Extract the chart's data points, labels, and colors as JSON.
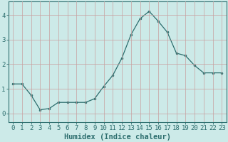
{
  "x": [
    0,
    1,
    2,
    3,
    4,
    5,
    6,
    7,
    8,
    9,
    10,
    11,
    12,
    13,
    14,
    15,
    16,
    17,
    18,
    19,
    20,
    21,
    22,
    23
  ],
  "y": [
    1.2,
    1.2,
    0.75,
    0.15,
    0.2,
    0.45,
    0.45,
    0.45,
    0.45,
    0.6,
    1.1,
    1.55,
    2.25,
    3.2,
    3.85,
    4.15,
    3.75,
    3.3,
    2.45,
    2.35,
    1.95,
    1.65,
    1.65,
    1.65
  ],
  "line_color": "#2d6e6e",
  "marker": "o",
  "marker_size": 2.0,
  "bg_color": "#cceae8",
  "grid_color": "#c8a0a0",
  "xlabel": "Humidex (Indice chaleur)",
  "xlabel_fontsize": 7.5,
  "yticks": [
    0,
    1,
    2,
    3,
    4
  ],
  "ylim": [
    -0.35,
    4.55
  ],
  "xlim": [
    -0.5,
    23.5
  ],
  "tick_fontsize": 6.5,
  "axis_color": "#2d6e6e"
}
